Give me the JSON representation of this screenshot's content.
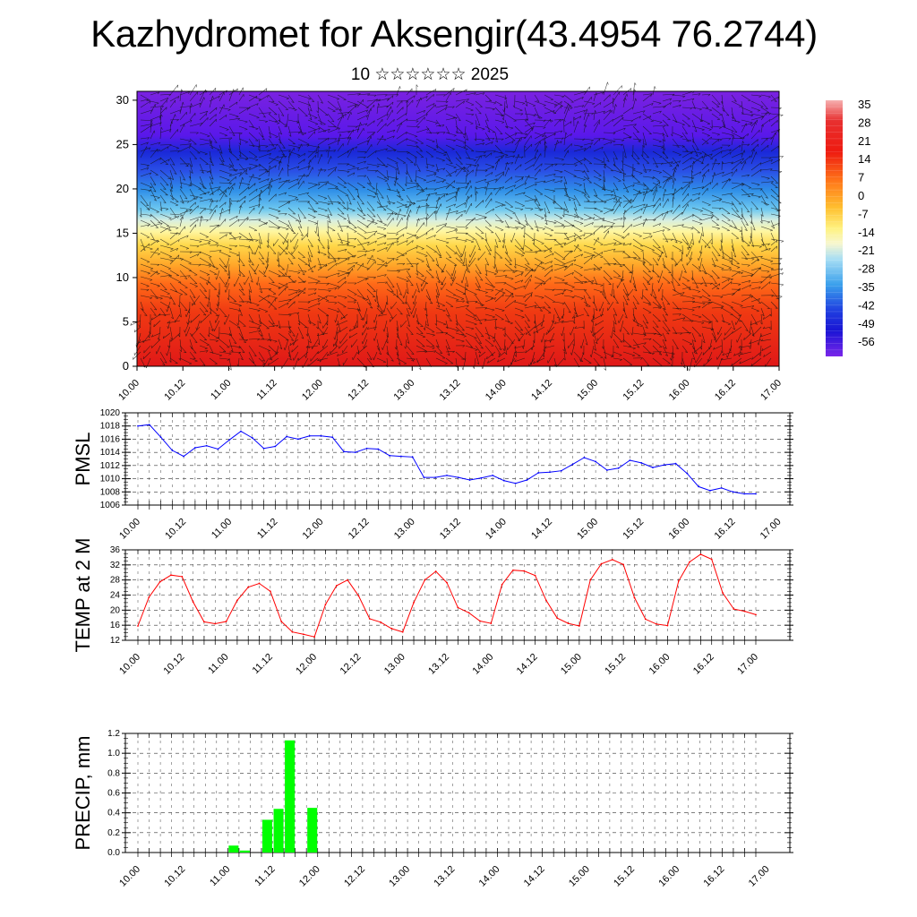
{
  "header": {
    "title": "Kazhydromet for Aksengir(43.4954 76.2744)",
    "subtitle": "10 ☆☆☆☆☆☆ 2025"
  },
  "x_labels": [
    "10.00",
    "10.12",
    "11.00",
    "11.12",
    "12.00",
    "12.12",
    "13.00",
    "13.12",
    "14.00",
    "14.12",
    "15.00",
    "15.12",
    "16.00",
    "16.12",
    "17.00"
  ],
  "chart_data": [
    {
      "type": "heatmap",
      "title": "",
      "xlabel": "",
      "ylabel": "",
      "x": [
        "10.00",
        "10.12",
        "11.00",
        "11.12",
        "12.00",
        "12.12",
        "13.00",
        "13.12",
        "14.00",
        "14.12",
        "15.00",
        "15.12",
        "16.00",
        "16.12",
        "17.00"
      ],
      "yticks": [
        0,
        5,
        10,
        15,
        20,
        25,
        30
      ],
      "ylim": [
        0,
        31
      ],
      "overlay": "wind-vectors",
      "colorbar": {
        "labels": [
          "35",
          "28",
          "21",
          "14",
          "7",
          "0",
          "-7",
          "-14",
          "-21",
          "-28",
          "-35",
          "-42",
          "-49",
          "-56"
        ],
        "range": [
          -63,
          42
        ]
      }
    },
    {
      "type": "line",
      "ylabel": "PMSL",
      "ylim": [
        1006,
        1020
      ],
      "yticks": [
        "1006",
        "1008",
        "1010",
        "1012",
        "1014",
        "1016",
        "1018",
        "1020"
      ],
      "color": "#0000ff",
      "values": [
        1018.0,
        1018.2,
        1016.3,
        1014.3,
        1013.4,
        1014.7,
        1015.0,
        1014.5,
        1015.9,
        1017.2,
        1016.2,
        1014.6,
        1014.9,
        1016.4,
        1016.0,
        1016.5,
        1016.5,
        1016.3,
        1014.1,
        1014.0,
        1014.6,
        1014.5,
        1013.5,
        1013.4,
        1013.3,
        1010.2,
        1010.2,
        1010.5,
        1010.2,
        1009.8,
        1010.1,
        1010.5,
        1009.7,
        1009.3,
        1009.8,
        1010.9,
        1011.0,
        1011.2,
        1012.2,
        1013.2,
        1012.6,
        1011.3,
        1011.6,
        1012.8,
        1012.4,
        1011.7,
        1012.1,
        1012.3,
        1010.8,
        1008.8,
        1008.2,
        1008.6,
        1008.0,
        1007.7,
        1007.7
      ]
    },
    {
      "type": "line",
      "ylabel": "TEMP at 2 M",
      "ylim": [
        12,
        36
      ],
      "yticks": [
        "12",
        "16",
        "20",
        "24",
        "28",
        "32",
        "36"
      ],
      "color": "#ff0000",
      "values": [
        15.8,
        23.4,
        27.5,
        29.3,
        28.9,
        22.2,
        16.9,
        16.4,
        17.0,
        22.6,
        26.1,
        27.1,
        25.0,
        17.0,
        14.2,
        13.6,
        12.9,
        21.5,
        26.5,
        28.0,
        23.8,
        17.7,
        16.8,
        15.1,
        14.2,
        22.0,
        28.0,
        30.3,
        27.3,
        20.7,
        19.3,
        17.1,
        16.5,
        26.8,
        30.6,
        30.4,
        29.2,
        22.6,
        17.9,
        16.5,
        15.8,
        28.0,
        32.3,
        33.4,
        32.1,
        23.3,
        17.6,
        16.3,
        15.9,
        27.7,
        32.8,
        34.8,
        33.5,
        24.6,
        20.3,
        19.7,
        18.8
      ]
    },
    {
      "type": "bar",
      "ylabel": "PRECIP, mm",
      "ylim": [
        0,
        1.2
      ],
      "yticks": [
        "0.0",
        "0.2",
        "0.4",
        "0.6",
        "0.8",
        "1.0",
        "1.2"
      ],
      "color": "#00ff00",
      "values": [
        0,
        0,
        0,
        0,
        0,
        0,
        0,
        0,
        0.07,
        0.02,
        0,
        0.33,
        0.44,
        1.13,
        0,
        0.45,
        0,
        0,
        0,
        0,
        0,
        0,
        0,
        0,
        0,
        0,
        0,
        0,
        0,
        0,
        0,
        0,
        0,
        0,
        0,
        0,
        0,
        0,
        0,
        0,
        0,
        0,
        0,
        0,
        0,
        0,
        0,
        0,
        0,
        0,
        0,
        0,
        0,
        0,
        0,
        0
      ]
    }
  ]
}
